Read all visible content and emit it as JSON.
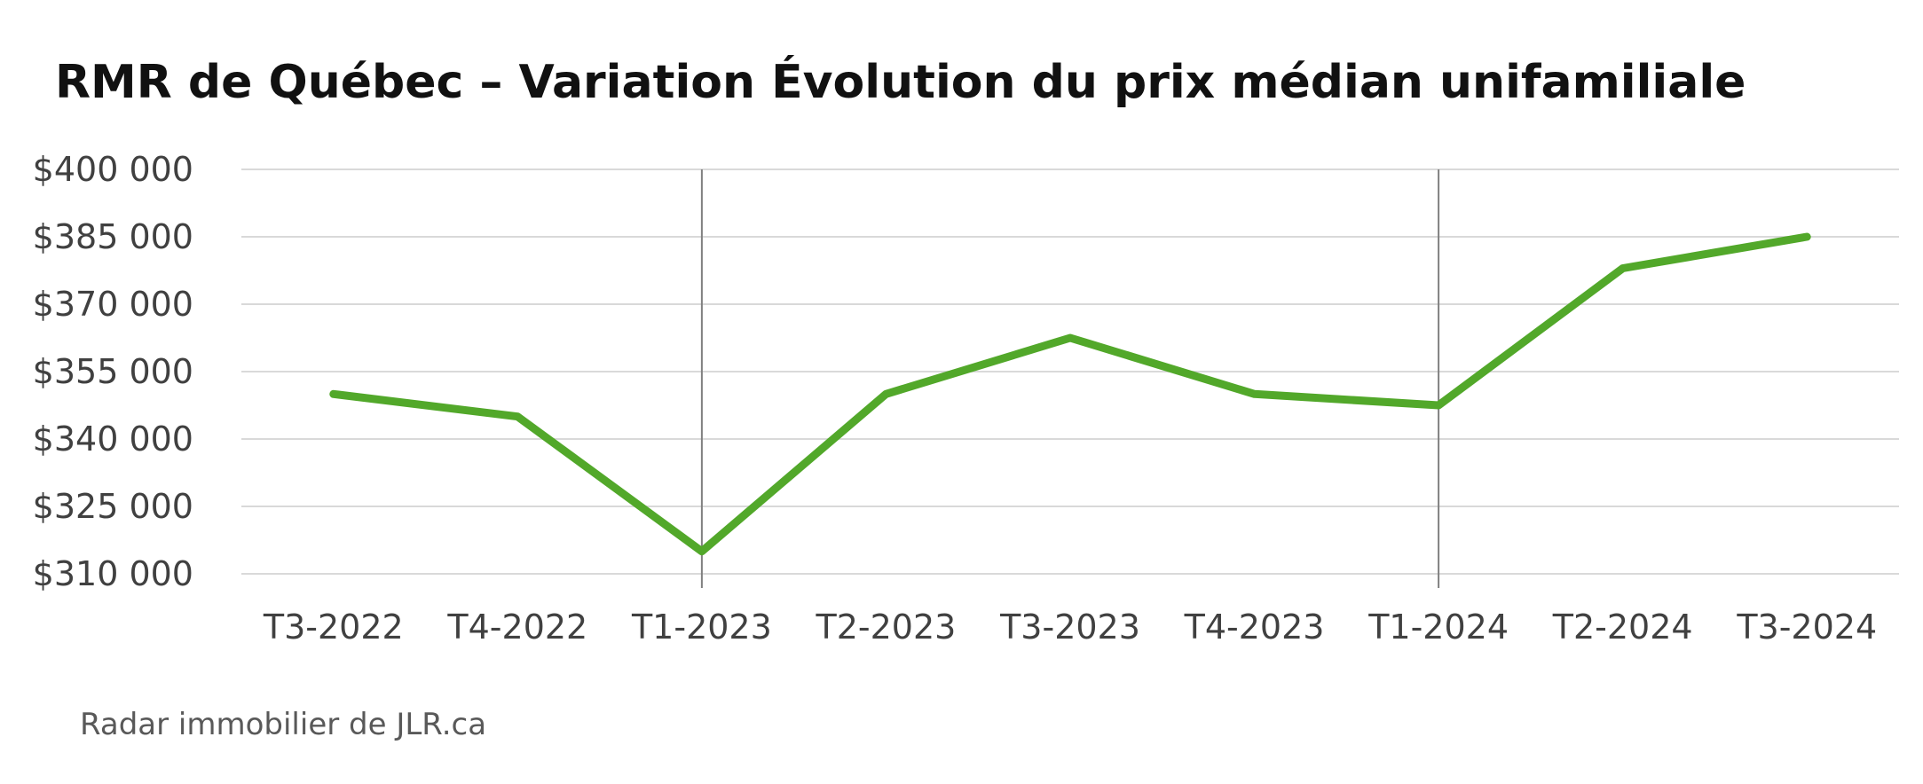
{
  "chart_data": {
    "type": "line",
    "title": "RMR de Québec – Variation Évolution du prix médian unifamiliale",
    "source": "Radar immobilier de JLR.ca",
    "categories": [
      "T3-2022",
      "T4-2022",
      "T1-2023",
      "T2-2023",
      "T3-2023",
      "T4-2023",
      "T1-2024",
      "T2-2024",
      "T3-2024"
    ],
    "series": [
      {
        "values": [
          350000,
          345000,
          315000,
          350000,
          362500,
          350000,
          347500,
          378000,
          385000
        ],
        "color": "#52a82a"
      }
    ],
    "ylim": [
      310000,
      400000
    ],
    "yticks": [
      310000,
      325000,
      340000,
      355000,
      370000,
      385000,
      400000
    ],
    "ytick_labels": [
      "$310 000",
      "$325 000",
      "$340 000",
      "$355 000",
      "$370 000",
      "$385 000",
      "$400 000"
    ],
    "vertical_markers": [
      "T1-2023",
      "T1-2024"
    ],
    "grid": "horizontal",
    "legend": "none"
  }
}
